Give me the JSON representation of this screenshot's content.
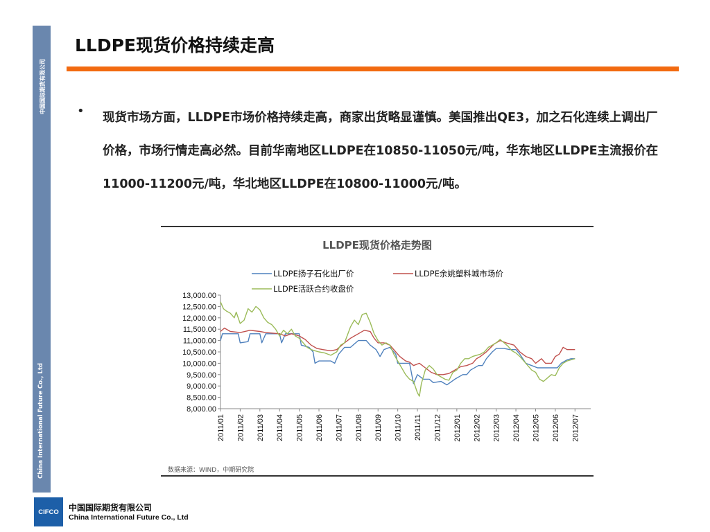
{
  "sidebar": {
    "company_cn": "中国国际期货有限公司",
    "company_en": "China International Future Co., Ltd"
  },
  "header": {
    "title": "LLDPE现货价格持续走高"
  },
  "content": {
    "bullet_symbol": "•",
    "paragraph": "现货市场方面，LLDPE市场价格持续走高，商家出货略显谨慎。美国推出QE3，加之石化连续上调出厂价格，市场行情走高必然。目前华南地区LLDPE在10850-11050元/吨，华东地区LLDPE主流报价在11000-11200元/吨，华北地区LLDPE在10800-11000元/吨。"
  },
  "footer": {
    "logo_text": "CIFCO",
    "company_cn": "中国国际期货有限公司",
    "company_en": "China International Future Co., Ltd"
  },
  "chart_data": {
    "type": "line",
    "title": "LLDPE现货价格走势图",
    "source": "数据来源：WIND，中期研究院",
    "x_ticks": [
      "2011/01",
      "2011/02",
      "2011/03",
      "2011/04",
      "2011/05",
      "2011/06",
      "2011/07",
      "2011/08",
      "2011/09",
      "2011/10",
      "2011/11",
      "2011/12",
      "2012/01",
      "2012/02",
      "2012/03",
      "2012/04",
      "2012/05",
      "2012/06",
      "2012/07"
    ],
    "y_ticks": [
      "13,000.00",
      "12,500.00",
      "12,000.00",
      "11,500.00",
      "11,000.00",
      "10,500.00",
      "10,000.00",
      "9,500.00",
      "9,000.00",
      "8,500.00",
      "8,000.00"
    ],
    "ylim": [
      8000,
      13000
    ],
    "xlim": [
      0,
      18.8
    ],
    "grid": false,
    "legend_position": "top",
    "series": [
      {
        "name": "LLDPE扬子石化出厂价",
        "color": "#4f81bd",
        "points": [
          [
            0,
            11000
          ],
          [
            0.1,
            11300
          ],
          [
            0.9,
            11300
          ],
          [
            1.0,
            10900
          ],
          [
            1.4,
            10950
          ],
          [
            1.5,
            11300
          ],
          [
            2.0,
            11300
          ],
          [
            2.1,
            10900
          ],
          [
            2.3,
            11300
          ],
          [
            3.0,
            11300
          ],
          [
            3.1,
            10900
          ],
          [
            3.3,
            11300
          ],
          [
            4.0,
            11300
          ],
          [
            4.1,
            10800
          ],
          [
            4.5,
            10700
          ],
          [
            4.7,
            10500
          ],
          [
            4.8,
            10000
          ],
          [
            5.0,
            10100
          ],
          [
            5.6,
            10100
          ],
          [
            5.8,
            10000
          ],
          [
            6.0,
            10400
          ],
          [
            6.3,
            10700
          ],
          [
            6.6,
            10700
          ],
          [
            7.0,
            11000
          ],
          [
            7.4,
            11000
          ],
          [
            7.6,
            10800
          ],
          [
            7.9,
            10600
          ],
          [
            8.1,
            10300
          ],
          [
            8.3,
            10600
          ],
          [
            8.6,
            10700
          ],
          [
            8.9,
            10400
          ],
          [
            9.0,
            10000
          ],
          [
            9.6,
            10000
          ],
          [
            9.8,
            9100
          ],
          [
            10.0,
            9500
          ],
          [
            10.3,
            9300
          ],
          [
            10.6,
            9300
          ],
          [
            10.8,
            9150
          ],
          [
            11.2,
            9200
          ],
          [
            11.5,
            9050
          ],
          [
            11.9,
            9300
          ],
          [
            12.3,
            9500
          ],
          [
            12.5,
            9500
          ],
          [
            12.7,
            9700
          ],
          [
            13.1,
            9900
          ],
          [
            13.3,
            9900
          ],
          [
            13.5,
            10200
          ],
          [
            13.8,
            10500
          ],
          [
            14.0,
            10650
          ],
          [
            14.4,
            10650
          ],
          [
            14.7,
            10600
          ],
          [
            15.0,
            10600
          ],
          [
            15.2,
            10400
          ],
          [
            15.5,
            10000
          ],
          [
            15.8,
            9900
          ],
          [
            16.1,
            9800
          ],
          [
            16.5,
            9800
          ],
          [
            16.9,
            9800
          ],
          [
            17.1,
            9800
          ],
          [
            17.3,
            10000
          ],
          [
            17.6,
            10150
          ],
          [
            17.8,
            10200
          ],
          [
            18.0,
            10200
          ]
        ]
      },
      {
        "name": "LLDPE余姚塑料城市场价",
        "color": "#c0504d",
        "points": [
          [
            0,
            11400
          ],
          [
            0.2,
            11550
          ],
          [
            0.5,
            11400
          ],
          [
            1.0,
            11350
          ],
          [
            1.5,
            11450
          ],
          [
            2.0,
            11400
          ],
          [
            2.3,
            11350
          ],
          [
            3.0,
            11300
          ],
          [
            3.3,
            11200
          ],
          [
            3.6,
            11300
          ],
          [
            4.0,
            11200
          ],
          [
            4.3,
            11050
          ],
          [
            4.6,
            10800
          ],
          [
            4.9,
            10650
          ],
          [
            5.2,
            10600
          ],
          [
            5.6,
            10550
          ],
          [
            5.9,
            10600
          ],
          [
            6.3,
            10900
          ],
          [
            6.6,
            11100
          ],
          [
            7.0,
            11300
          ],
          [
            7.3,
            11450
          ],
          [
            7.6,
            11400
          ],
          [
            7.8,
            11100
          ],
          [
            8.0,
            10900
          ],
          [
            8.3,
            10900
          ],
          [
            8.6,
            10800
          ],
          [
            8.9,
            10500
          ],
          [
            9.1,
            10300
          ],
          [
            9.4,
            10100
          ],
          [
            9.6,
            10050
          ],
          [
            9.8,
            9900
          ],
          [
            10.1,
            10000
          ],
          [
            10.4,
            9800
          ],
          [
            10.7,
            9600
          ],
          [
            11.0,
            9500
          ],
          [
            11.3,
            9500
          ],
          [
            11.6,
            9550
          ],
          [
            11.9,
            9700
          ],
          [
            12.2,
            9850
          ],
          [
            12.5,
            9900
          ],
          [
            12.8,
            10000
          ],
          [
            13.0,
            10200
          ],
          [
            13.2,
            10300
          ],
          [
            13.5,
            10500
          ],
          [
            13.9,
            10850
          ],
          [
            14.2,
            11000
          ],
          [
            14.5,
            10900
          ],
          [
            14.9,
            10800
          ],
          [
            15.2,
            10500
          ],
          [
            15.5,
            10300
          ],
          [
            15.8,
            10200
          ],
          [
            16.0,
            10000
          ],
          [
            16.3,
            10200
          ],
          [
            16.5,
            10000
          ],
          [
            16.8,
            10000
          ],
          [
            17.0,
            10300
          ],
          [
            17.2,
            10400
          ],
          [
            17.4,
            10700
          ],
          [
            17.6,
            10600
          ],
          [
            18.0,
            10600
          ]
        ]
      },
      {
        "name": "LLDPE活跃合约收盘价",
        "color": "#9bbb59",
        "points": [
          [
            0,
            12700
          ],
          [
            0.15,
            12400
          ],
          [
            0.3,
            12300
          ],
          [
            0.5,
            12200
          ],
          [
            0.7,
            12000
          ],
          [
            0.8,
            12250
          ],
          [
            1.0,
            11750
          ],
          [
            1.2,
            11900
          ],
          [
            1.4,
            12400
          ],
          [
            1.6,
            12250
          ],
          [
            1.8,
            12500
          ],
          [
            2.0,
            12350
          ],
          [
            2.2,
            12000
          ],
          [
            2.4,
            11800
          ],
          [
            2.6,
            11700
          ],
          [
            2.8,
            11500
          ],
          [
            3.0,
            11200
          ],
          [
            3.2,
            11450
          ],
          [
            3.4,
            11300
          ],
          [
            3.6,
            11500
          ],
          [
            3.8,
            11200
          ],
          [
            4.0,
            11100
          ],
          [
            4.2,
            10900
          ],
          [
            4.4,
            10700
          ],
          [
            4.6,
            10600
          ],
          [
            4.8,
            10550
          ],
          [
            5.0,
            10500
          ],
          [
            5.3,
            10450
          ],
          [
            5.6,
            10350
          ],
          [
            5.9,
            10500
          ],
          [
            6.1,
            10800
          ],
          [
            6.3,
            10900
          ],
          [
            6.6,
            11600
          ],
          [
            6.8,
            11900
          ],
          [
            7.0,
            11700
          ],
          [
            7.2,
            12150
          ],
          [
            7.4,
            12200
          ],
          [
            7.6,
            11800
          ],
          [
            7.8,
            11300
          ],
          [
            8.0,
            11000
          ],
          [
            8.2,
            10800
          ],
          [
            8.4,
            10900
          ],
          [
            8.6,
            10800
          ],
          [
            8.8,
            10400
          ],
          [
            9.0,
            10100
          ],
          [
            9.2,
            9800
          ],
          [
            9.4,
            9500
          ],
          [
            9.6,
            9300
          ],
          [
            9.8,
            9200
          ],
          [
            10.0,
            8700
          ],
          [
            10.1,
            8550
          ],
          [
            10.2,
            9100
          ],
          [
            10.4,
            9700
          ],
          [
            10.6,
            9900
          ],
          [
            10.8,
            9750
          ],
          [
            11.0,
            9500
          ],
          [
            11.2,
            9400
          ],
          [
            11.4,
            9300
          ],
          [
            11.6,
            9250
          ],
          [
            11.8,
            9600
          ],
          [
            12.0,
            9700
          ],
          [
            12.2,
            10000
          ],
          [
            12.4,
            10200
          ],
          [
            12.6,
            10200
          ],
          [
            12.8,
            10300
          ],
          [
            13.0,
            10350
          ],
          [
            13.2,
            10400
          ],
          [
            13.4,
            10500
          ],
          [
            13.6,
            10700
          ],
          [
            13.8,
            10800
          ],
          [
            14.0,
            10900
          ],
          [
            14.2,
            11050
          ],
          [
            14.4,
            10900
          ],
          [
            14.6,
            10750
          ],
          [
            14.8,
            10550
          ],
          [
            15.0,
            10450
          ],
          [
            15.2,
            10300
          ],
          [
            15.4,
            10100
          ],
          [
            15.6,
            9900
          ],
          [
            15.8,
            9700
          ],
          [
            16.0,
            9600
          ],
          [
            16.2,
            9300
          ],
          [
            16.4,
            9200
          ],
          [
            16.6,
            9350
          ],
          [
            16.8,
            9500
          ],
          [
            17.0,
            9450
          ],
          [
            17.2,
            9800
          ],
          [
            17.4,
            10000
          ],
          [
            17.6,
            10100
          ],
          [
            17.8,
            10150
          ],
          [
            18.0,
            10200
          ]
        ]
      }
    ]
  }
}
